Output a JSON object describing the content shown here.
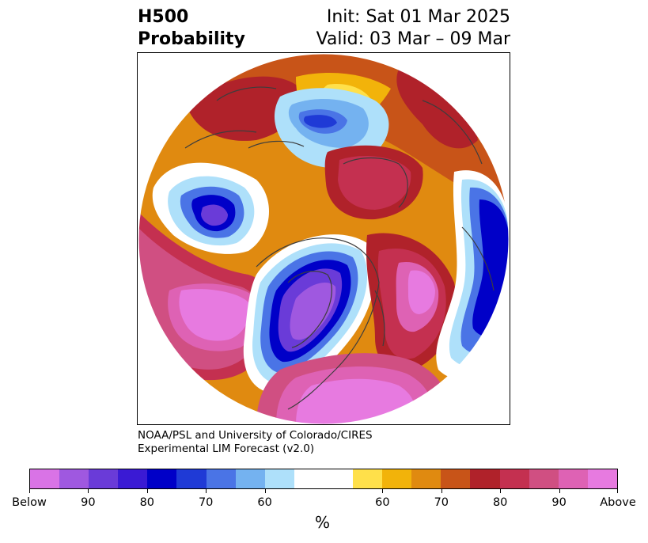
{
  "title": {
    "line1": "H500",
    "line2": "Probability"
  },
  "subtitle": {
    "init": "Init: Sat 01 Mar 2025",
    "valid": "Valid: 03 Mar – 09 Mar"
  },
  "credit": {
    "line1": "NOAA/PSL and University of Colorado/CIRES",
    "line2": "Experimental LIM Forecast (v2.0)"
  },
  "colorbar": {
    "unit": "%",
    "colors": [
      "#d973e6",
      "#9f58e0",
      "#6a3bd8",
      "#3a1ad4",
      "#0000c8",
      "#1f3ad6",
      "#4a74e6",
      "#74b2f0",
      "#aee0fa",
      "#ffffff",
      "#ffffff",
      "#ffe04a",
      "#f2b30a",
      "#e08a10",
      "#c85418",
      "#b0222a",
      "#c43050",
      "#d04f82",
      "#de62b4",
      "#e77ae0"
    ],
    "tick_labels": [
      "Below",
      "90",
      "80",
      "70",
      "60",
      "60",
      "70",
      "80",
      "90",
      "Above"
    ],
    "tick_positions_index": [
      0,
      2,
      4,
      6,
      8,
      12,
      14,
      16,
      18,
      20
    ]
  },
  "map": {
    "projection": "north-polar-stereographic",
    "palette": {
      "below_strong": "#d973e6",
      "below_90": "#6a3bd8",
      "below_80": "#0000c8",
      "below_70": "#4a74e6",
      "below_60": "#aee0fa",
      "neutral": "#ffffff",
      "above_60": "#ffe04a",
      "above_70": "#e08a10",
      "above_80": "#b0222a",
      "above_90": "#d04f82",
      "above_strong": "#e77ae0"
    }
  }
}
